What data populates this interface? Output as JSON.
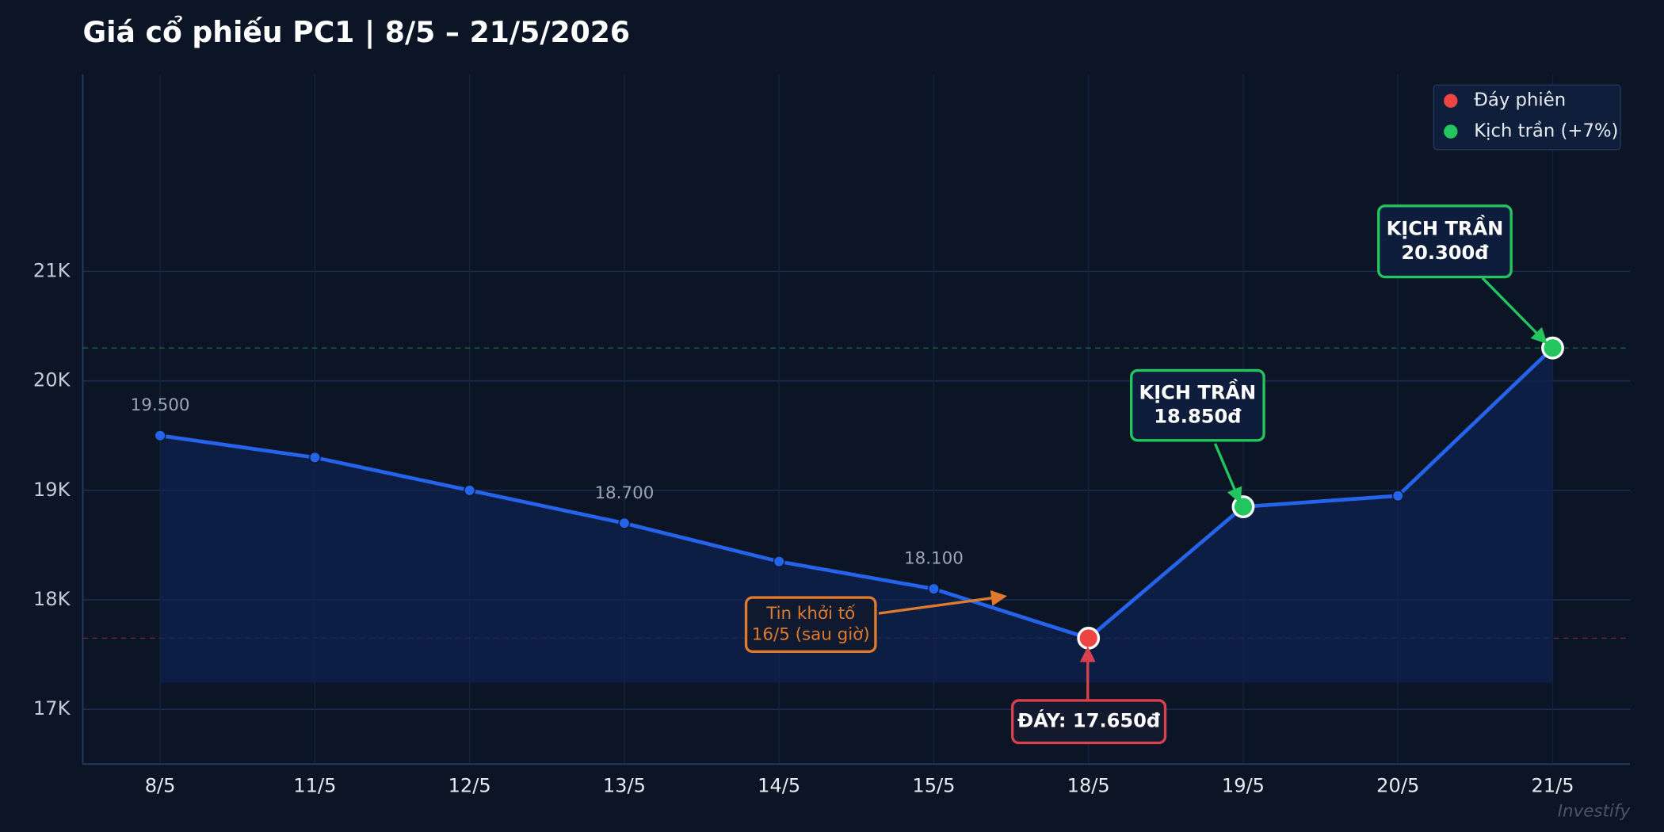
{
  "chart_data": {
    "type": "line",
    "title": "Giá cổ phiếu PC1  |  8/5 – 21/5/2026",
    "categories": [
      "8/5",
      "11/5",
      "12/5",
      "13/5",
      "14/5",
      "15/5",
      "18/5",
      "19/5",
      "20/5",
      "21/5"
    ],
    "series": [
      {
        "name": "PC1",
        "color": "#2563eb",
        "values": [
          19500,
          19300,
          19000,
          18700,
          18350,
          18100,
          17650,
          18850,
          18950,
          20300
        ],
        "value_labels": [
          "19.500",
          null,
          null,
          "18.700",
          null,
          "18.100",
          null,
          null,
          null,
          null
        ]
      }
    ],
    "ylim": [
      16500,
      22800
    ],
    "yticks": [
      {
        "value": 17000,
        "label": "17K"
      },
      {
        "value": 18000,
        "label": "18K"
      },
      {
        "value": 19000,
        "label": "19K"
      },
      {
        "value": 20000,
        "label": "20K"
      },
      {
        "value": 21000,
        "label": "21K"
      }
    ],
    "grid": true,
    "legend": {
      "position": "upper right",
      "items": [
        {
          "name": "Đáy phiên",
          "color": "#ef4444"
        },
        {
          "name": "Kịch trần (+7%)",
          "color": "#22c55e"
        }
      ]
    },
    "reference_lines": [
      {
        "value": 20300,
        "color": "#22c55e"
      },
      {
        "value": 17650,
        "color": "#ef4444"
      }
    ],
    "annotations": [
      {
        "lines": [
          "ĐÁY: 17.650đ"
        ],
        "color": "#d9414f"
      },
      {
        "lines": [
          "KỊCH TRẦN",
          "18.850đ"
        ],
        "color": "#22c55e"
      },
      {
        "lines": [
          "KỊCH TRẦN",
          "20.300đ"
        ],
        "color": "#22c55e"
      },
      {
        "lines": [
          "Tin khởi tố",
          "16/5 (sau giờ)"
        ],
        "color": "#e07a2c"
      }
    ],
    "watermark": "Investify"
  }
}
